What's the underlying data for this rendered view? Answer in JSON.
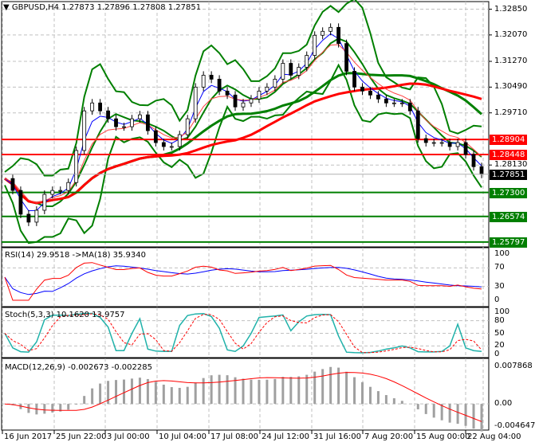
{
  "header": {
    "symbol": "GBPUSD,H4",
    "ohlc": "1.27873 1.27896 1.27808 1.27851"
  },
  "chart_data": [
    {
      "type": "candlestick",
      "title": "GBPUSD,H4",
      "closes": [
        1.2772,
        1.2736,
        1.2664,
        1.264,
        1.2676,
        1.2724,
        1.2736,
        1.2736,
        1.276,
        1.2857,
        1.2977,
        1.3001,
        1.2977,
        1.2953,
        1.2929,
        1.2929,
        1.2953,
        1.2965,
        1.2917,
        1.2881,
        1.2869,
        1.2869,
        1.2905,
        1.2953,
        1.3049,
        1.3085,
        1.3073,
        1.3037,
        1.3025,
        1.2989,
        1.3001,
        1.3013,
        1.3037,
        1.3049,
        1.3073,
        1.3121,
        1.3085,
        1.3109,
        1.3145,
        1.3206,
        1.3218,
        1.323,
        1.3181,
        1.3097,
        1.3049,
        1.3037,
        1.3025,
        1.3013,
        1.3001,
        1.3001,
        1.3001,
        1.2977,
        1.2893,
        1.2881,
        1.2881,
        1.2881,
        1.2869,
        1.2881,
        1.2845,
        1.2808,
        1.2785
      ],
      "ylim": [
        1.2565,
        1.3308
      ],
      "y_ticks": [
        "1.32850",
        "1.32070",
        "1.31270",
        "1.30490",
        "1.29710",
        "1.28130"
      ],
      "x_ticks": [
        "16 Jun 2017",
        "25 Jun 22:00",
        "3 Jul 00:00",
        "10 Jul 04:00",
        "17 Jul 08:00",
        "24 Jul 12:00",
        "31 Jul 16:00",
        "7 Aug 20:00",
        "15 Aug 00:00",
        "22 Aug 04:00"
      ],
      "levels": [
        {
          "value": "1.28904",
          "color": "#ff0000"
        },
        {
          "value": "1.28448",
          "color": "#ff0000"
        },
        {
          "value": "1.27300",
          "color": "#007f00"
        },
        {
          "value": "1.26574",
          "color": "#007f00"
        },
        {
          "value": "1.25797",
          "color": "#007f00"
        }
      ],
      "current_price": "1.27851",
      "grid": true
    },
    {
      "type": "line",
      "title": "RSI(14) 29.9518  ->MA(18) 35.9340",
      "y_ticks": [
        "100",
        "70",
        "30",
        "0"
      ],
      "ylim": [
        0,
        100
      ],
      "colors": {
        "rsi": "#ff0000",
        "ma": "#0000ff"
      }
    },
    {
      "type": "line",
      "title": "Stoch(5,3,3) 10.1620 13.9757",
      "y_ticks": [
        "100",
        "80",
        "50",
        "20",
        "0"
      ],
      "ylim": [
        0,
        100
      ],
      "colors": {
        "main": "#20b2aa",
        "signal": "#ff0000"
      }
    },
    {
      "type": "bar",
      "title": "MACD(12,26,9) -0.002673 -0.002285",
      "y_ticks": [
        "0.007868",
        "0.00",
        "-0.004647"
      ],
      "ylim": [
        -0.004647,
        0.007868
      ],
      "colors": {
        "hist": "#a0a0a0",
        "signal": "#ff0000"
      }
    }
  ]
}
